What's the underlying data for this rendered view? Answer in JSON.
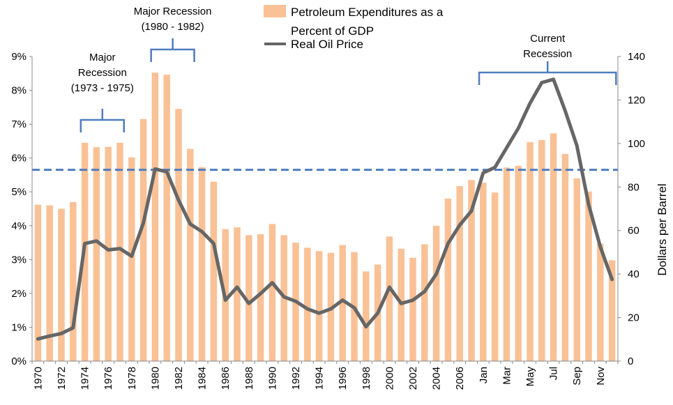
{
  "chart_data": {
    "type": "bar",
    "categories": [
      "1970",
      "1971",
      "1972",
      "1973",
      "1974",
      "1975",
      "1976",
      "1977",
      "1978",
      "1979",
      "1980",
      "1981",
      "1982",
      "1983",
      "1984",
      "1985",
      "1986",
      "1987",
      "1988",
      "1989",
      "1990",
      "1991",
      "1992",
      "1993",
      "1994",
      "1995",
      "1996",
      "1997",
      "1998",
      "1999",
      "2000",
      "2001",
      "2002",
      "2003",
      "2004",
      "2005",
      "2006",
      "2007",
      "Jan",
      "Feb",
      "Mar",
      "Apr",
      "May",
      "Jun",
      "Jul",
      "Aug",
      "Sep",
      "Oct",
      "Nov",
      "Dec"
    ],
    "x_tick_labels": [
      "1970",
      "1972",
      "1974",
      "1976",
      "1978",
      "1980",
      "1982",
      "1984",
      "1986",
      "1988",
      "1990",
      "1992",
      "1994",
      "1996",
      "1998",
      "2000",
      "2002",
      "2004",
      "2006",
      "Jan",
      "Mar",
      "May",
      "Jul",
      "Sep",
      "Nov"
    ],
    "y_left": {
      "range": [
        0,
        9
      ],
      "ticks": [
        "0%",
        "1%",
        "2%",
        "3%",
        "4%",
        "5%",
        "6%",
        "7%",
        "8%",
        "9%"
      ]
    },
    "y_right": {
      "range": [
        0,
        140
      ],
      "ticks": [
        "0",
        "20",
        "40",
        "60",
        "80",
        "100",
        "120",
        "140"
      ],
      "label": "Dollars per Barrel"
    },
    "series": [
      {
        "name": "Petroleum Expenditures as a Percent of GDP",
        "type": "bar",
        "axis": "left",
        "color": "#F9C196",
        "values": [
          4.62,
          4.6,
          4.5,
          4.7,
          6.45,
          6.32,
          6.33,
          6.45,
          6.02,
          7.15,
          8.52,
          8.46,
          7.45,
          6.27,
          5.73,
          5.3,
          3.9,
          3.95,
          3.72,
          3.75,
          4.05,
          3.72,
          3.5,
          3.35,
          3.25,
          3.2,
          3.43,
          3.22,
          2.65,
          2.85,
          3.68,
          3.32,
          3.05,
          3.45,
          4.0,
          4.8,
          5.17,
          5.35,
          5.27,
          4.98,
          5.72,
          5.77,
          6.47,
          6.53,
          6.73,
          6.12,
          5.4,
          5.01,
          3.47,
          2.98
        ]
      },
      {
        "name": "Real Oil Price",
        "type": "line",
        "axis": "right",
        "color": "#666666",
        "values": [
          10.2,
          11.5,
          12.7,
          15.3,
          54.0,
          55.2,
          51.1,
          51.7,
          48.2,
          63.5,
          88.3,
          87.0,
          74.0,
          63.0,
          59.5,
          54.0,
          28.0,
          34.0,
          26.5,
          31.0,
          36.0,
          29.5,
          27.5,
          24.0,
          22.0,
          24.0,
          28.0,
          24.5,
          15.8,
          22.0,
          34.0,
          26.5,
          28.0,
          32.0,
          40.0,
          54.0,
          62.5,
          69.0,
          86.5,
          89.0,
          98.0,
          107.0,
          118.5,
          128.0,
          129.5,
          115.0,
          99.0,
          72.0,
          52.5,
          37.5
        ]
      }
    ],
    "reference_line": {
      "axis": "left",
      "value": 5.65,
      "color": "#4F7CC0",
      "style": "dashed"
    },
    "annotations": [
      {
        "lines": [
          "Major",
          "Recession",
          "(1973 - 1975)"
        ],
        "from_index": 4,
        "to_index": 7
      },
      {
        "lines": [
          "Major Recession",
          "(1980 - 1982)"
        ],
        "from_index": 10,
        "to_index": 13
      },
      {
        "lines": [
          "Current",
          "Recession"
        ],
        "from_index": 38,
        "to_index": 49
      }
    ],
    "bracket_color": "#4F7CC0",
    "legend": {
      "placement": "top-center"
    },
    "grid": false
  }
}
